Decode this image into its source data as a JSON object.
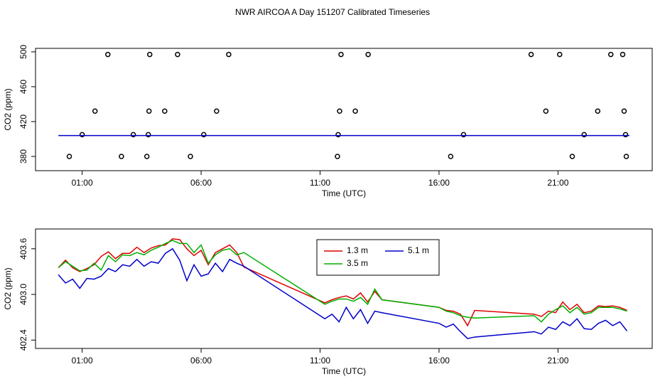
{
  "chart_data": [
    {
      "type": "scatter",
      "title": "NWR AIRCOA A  Day 151207  Calibrated Timeseries",
      "x_label": "Time (UTC)",
      "y_label": "CO2 (ppm)",
      "xlim": [
        -0.96,
        24.96
      ],
      "xticks": [
        {
          "value": 1,
          "label": "01:00"
        },
        {
          "value": 6,
          "label": "06:00"
        },
        {
          "value": 11,
          "label": "11:00"
        },
        {
          "value": 16,
          "label": "16:00"
        },
        {
          "value": 21,
          "label": "21:00"
        }
      ],
      "ylim": [
        363.7,
        504
      ],
      "yticks": [
        380,
        420,
        460,
        500
      ],
      "series": [
        {
          "color": "#000000",
          "marker": "circle",
          "x": [
            2.08,
            3.84,
            5.01,
            7.16,
            11.88,
            13.02,
            19.87,
            21.07,
            23.22,
            23.72,
            1.54,
            3.81,
            4.47,
            6.65,
            11.82,
            12.48,
            20.49,
            22.67,
            23.78,
            1.0,
            3.15,
            3.78,
            6.11,
            11.76,
            17.03,
            22.1,
            23.84,
            0.46,
            2.65,
            3.72,
            5.55,
            11.73,
            16.49,
            21.6,
            23.87
          ],
          "values": [
            497,
            497,
            497,
            497,
            497,
            497,
            497,
            497,
            497,
            497,
            432,
            432,
            432,
            432,
            432,
            432,
            432,
            432,
            432,
            405,
            405,
            405,
            405,
            405,
            405,
            405,
            405,
            380,
            380,
            380,
            380,
            380,
            380,
            380,
            380
          ]
        },
        {
          "color": "#0000cc",
          "marker": "line",
          "x": [
            0,
            24
          ],
          "values": [
            404,
            404
          ]
        }
      ]
    },
    {
      "type": "line",
      "x_label": "Time (UTC)",
      "y_label": "CO2 (ppm)",
      "xlim": [
        -0.96,
        24.96
      ],
      "xticks": [
        {
          "value": 1,
          "label": "01:00"
        },
        {
          "value": 6,
          "label": "06:00"
        },
        {
          "value": 11,
          "label": "11:00"
        },
        {
          "value": 16,
          "label": "16:00"
        },
        {
          "value": 21,
          "label": "21:00"
        }
      ],
      "ylim": [
        402.29,
        403.86
      ],
      "yticks": [
        402.4,
        {
          "value": 403.0,
          "label": "403.0"
        },
        403.6
      ],
      "legend": "top",
      "x": [
        0,
        0.3,
        0.6,
        0.9,
        1.2,
        1.5,
        1.8,
        2.1,
        2.4,
        2.7,
        3.0,
        3.3,
        3.6,
        3.9,
        4.2,
        4.5,
        4.8,
        5.1,
        5.4,
        5.7,
        6.0,
        6.3,
        6.6,
        6.9,
        7.2,
        7.5,
        7.8,
        11.2,
        11.5,
        11.8,
        12.1,
        12.4,
        12.7,
        13.0,
        13.3,
        13.6,
        16.0,
        16.3,
        16.6,
        16.9,
        17.2,
        17.5,
        20.0,
        20.3,
        20.6,
        20.9,
        21.2,
        21.5,
        21.8,
        22.1,
        22.4,
        22.7,
        23.0,
        23.3,
        23.6,
        23.9
      ],
      "series": [
        {
          "name": "1.3 m",
          "color": "#e00000",
          "values": [
            403.35,
            403.45,
            403.35,
            403.3,
            403.34,
            403.39,
            403.5,
            403.56,
            403.47,
            403.54,
            403.54,
            403.62,
            403.55,
            403.61,
            403.64,
            403.65,
            403.73,
            403.72,
            403.6,
            403.51,
            403.58,
            403.39,
            403.55,
            403.6,
            403.65,
            403.55,
            403.36,
            402.89,
            402.93,
            402.96,
            402.98,
            402.94,
            403.02,
            402.9,
            403.04,
            402.93,
            402.83,
            402.79,
            402.78,
            402.74,
            402.59,
            402.79,
            402.74,
            402.71,
            402.78,
            402.76,
            402.9,
            402.8,
            402.87,
            402.76,
            402.78,
            402.85,
            402.84,
            402.85,
            402.83,
            402.79
          ]
        },
        {
          "name": "3.5 m",
          "color": "#00b000",
          "values": [
            403.35,
            403.43,
            403.37,
            403.31,
            403.32,
            403.41,
            403.32,
            403.51,
            403.43,
            403.52,
            403.51,
            403.55,
            403.52,
            403.58,
            403.62,
            403.67,
            403.71,
            403.67,
            403.67,
            403.55,
            403.65,
            403.41,
            403.52,
            403.58,
            403.6,
            403.52,
            403.55,
            402.87,
            402.91,
            402.94,
            402.94,
            402.91,
            402.96,
            402.87,
            403.07,
            402.93,
            402.83,
            402.78,
            402.76,
            402.72,
            402.7,
            402.69,
            402.72,
            402.64,
            402.74,
            402.8,
            402.85,
            402.76,
            402.83,
            402.74,
            402.76,
            402.83,
            402.83,
            402.83,
            402.81,
            402.78
          ]
        },
        {
          "name": "5.1 m",
          "color": "#0000cc",
          "values": [
            403.26,
            403.15,
            403.2,
            403.08,
            403.21,
            403.2,
            403.24,
            403.34,
            403.3,
            403.39,
            403.37,
            403.46,
            403.37,
            403.43,
            403.41,
            403.54,
            403.6,
            403.45,
            403.18,
            403.39,
            403.24,
            403.27,
            403.41,
            403.3,
            403.46,
            403.41,
            403.37,
            402.68,
            402.74,
            402.64,
            402.83,
            402.68,
            402.8,
            402.62,
            402.78,
            402.76,
            402.62,
            402.57,
            402.61,
            402.51,
            402.42,
            402.44,
            402.51,
            402.48,
            402.57,
            402.54,
            402.64,
            402.59,
            402.68,
            402.55,
            402.54,
            402.62,
            402.66,
            402.59,
            402.64,
            402.52
          ]
        }
      ]
    }
  ]
}
